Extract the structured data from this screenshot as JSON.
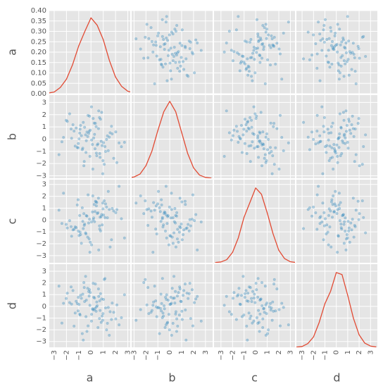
{
  "chart_data": {
    "type": "scatter_matrix",
    "variables": [
      "a",
      "b",
      "c",
      "d"
    ],
    "point_color": "#348abd",
    "line_color": "#e24a33",
    "grid": true,
    "data": [
      [
        0.12,
        -0.85,
        1.34,
        0.47,
        -1.62,
        0.05,
        2.11,
        -0.33,
        0.78,
        -1.05,
        0.29,
        -0.58,
        1.67,
        -2.24,
        0.91,
        -0.12,
        0.44,
        -1.38,
        1.02,
        0.63,
        -0.71,
        -0.19,
        1.85,
        -0.97,
        0.36,
        2.48,
        -1.21,
        0.15,
        -0.44,
        0.83,
        -2.02,
        1.19,
        -0.06,
        0.57,
        -1.74,
        0.98,
        -0.27,
        1.41,
        -0.63,
        0.22,
        -1.12,
        0.69,
        -2.61,
        1.56,
        -0.38,
        0.04,
        1.08,
        -0.89,
        0.51,
        -1.47,
        2.29,
        -0.15,
        0.74,
        -0.52,
        1.27,
        -1.93,
        0.33,
        -0.78,
        0.96,
        0.18,
        -1.29,
        1.73,
        -0.41,
        0.61,
        -2.37,
        0.87,
        -0.09,
        1.49,
        -0.67,
        0.26,
        -1.03,
        2.02,
        -0.55,
        0.42,
        -1.58,
        1.14,
        -0.24,
        0.71,
        -0.92,
        2.73
      ],
      [
        -0.44,
        1.12,
        0.27,
        -1.36,
        0.83,
        -0.07,
        -1.92,
        0.58,
        1.63,
        -0.71,
        0.39,
        -2.18,
        1.05,
        0.14,
        -0.53,
        1.88,
        -1.14,
        0.66,
        -0.29,
        2.31,
        -0.86,
        0.47,
        -1.57,
        0.02,
        1.29,
        -0.62,
        0.91,
        -2.45,
        0.35,
        -0.18,
        1.54,
        -1.01,
        0.73,
        -0.39,
        2.07,
        -1.76,
        0.21,
        -0.95,
        1.37,
        0.09,
        -0.68,
        1.76,
        -1.27,
        0.52,
        -0.13,
        2.64,
        -2.06,
        0.81,
        -0.48,
        1.18,
        -0.31,
        0.64,
        -1.49,
        0.97,
        -0.02,
        1.45,
        -0.79,
        0.28,
        -2.83,
        1.69,
        -0.57,
        0.43,
        -1.09,
        0.86,
        -0.22,
        2.19,
        -1.41,
        0.16,
        -0.74,
        1.31,
        -0.36,
        0.59,
        -1.83,
        1.02,
        0.07,
        -0.61,
        1.94,
        -1.18,
        0.49,
        -0.26
      ],
      [
        0.68,
        -1.23,
        0.19,
        1.47,
        -0.56,
        -2.09,
        0.88,
        0.33,
        -0.92,
        1.71,
        -0.14,
        0.54,
        -1.66,
        2.26,
        -0.41,
        0.07,
        1.19,
        -0.78,
        0.42,
        -2.52,
        1.03,
        -0.25,
        0.76,
        -1.31,
        1.58,
        0.11,
        -0.64,
        2.03,
        -1.08,
        0.29,
        -0.37,
        1.36,
        -1.87,
        0.61,
        -0.05,
        0.94,
        -1.44,
        2.41,
        -0.72,
        0.18,
        1.27,
        -0.49,
        0.83,
        -2.27,
        0.37,
        -0.16,
        1.62,
        -1.02,
        0.55,
        -0.83,
        2.84,
        -1.59,
        0.24,
        -0.34,
        1.09,
        -0.67,
        0.71,
        -1.96,
        1.43,
        0.03,
        -0.58,
        0.97,
        -1.17,
        1.84,
        -0.29,
        0.46,
        -2.71,
        0.89,
        -0.11,
        1.31,
        -0.93,
        0.62,
        -0.45,
        1.53,
        -1.36,
        0.21,
        2.12,
        -0.76,
        0.38,
        -1.51
      ],
      [
        -0.21,
        0.94,
        -1.45,
        0.37,
        1.66,
        -0.68,
        0.12,
        -2.14,
        1.08,
        -0.39,
        0.71,
        2.03,
        -1.12,
        0.26,
        -0.83,
        1.42,
        -0.04,
        -1.69,
        0.59,
        0.85,
        -2.33,
        1.27,
        -0.51,
        0.16,
        1.91,
        -0.97,
        0.43,
        -0.28,
        2.56,
        -1.37,
        0.67,
        -0.13,
        1.18,
        -1.81,
        0.32,
        -0.62,
        1.54,
        -0.09,
        -2.88,
        0.78,
        0.24,
        -1.04,
        1.73,
        -0.46,
        0.53,
        -1.26,
        2.29,
        -0.74,
        0.05,
        1.35,
        -1.58,
        0.88,
        -0.35,
        0.41,
        -2.01,
        1.12,
        -0.17,
        0.69,
        -1.19,
        1.97,
        -0.57,
        0.28,
        -0.88,
        1.49,
        -1.43,
        0.63,
        0.09,
        -2.47,
        1.04,
        -0.31,
        0.77,
        -1.07,
        1.61,
        -0.42,
        0.19,
        2.38,
        -1.67,
        0.47,
        -0.66,
        0.99
      ]
    ],
    "lims": [
      [
        -3.4,
        3.2
      ],
      [
        -3.2,
        3.6
      ],
      [
        -3.6,
        3.4
      ],
      [
        -3.5,
        3.6
      ]
    ],
    "ticks": [
      {
        "value": -3,
        "label": "−3"
      },
      {
        "value": -2,
        "label": "−2"
      },
      {
        "value": -1,
        "label": "−1"
      },
      0,
      1,
      2,
      3
    ],
    "density_ylim": [
      0,
      0.4
    ],
    "density_yticks": [
      {
        "value": 0,
        "label": "0.00"
      },
      {
        "value": 0.05,
        "label": "0.05"
      },
      {
        "value": 0.1,
        "label": "0.10"
      },
      {
        "value": 0.15,
        "label": "0.15"
      },
      {
        "value": 0.2,
        "label": "0.20"
      },
      {
        "value": 0.25,
        "label": "0.25"
      },
      {
        "value": 0.3,
        "label": "0.30"
      },
      {
        "value": 0.35,
        "label": "0.35"
      },
      {
        "value": 0.4,
        "label": "0.40"
      }
    ],
    "kde_x": [
      -3.5,
      -3,
      -2.5,
      -2,
      -1.5,
      -1,
      -0.5,
      0,
      0.5,
      1,
      1.5,
      2,
      2.5,
      3,
      3.5
    ],
    "kde": [
      [
        0.003,
        0.008,
        0.03,
        0.07,
        0.14,
        0.23,
        0.3,
        0.365,
        0.33,
        0.26,
        0.16,
        0.08,
        0.035,
        0.012,
        0.004
      ],
      [
        0.002,
        0.006,
        0.02,
        0.06,
        0.13,
        0.23,
        0.32,
        0.37,
        0.32,
        0.22,
        0.12,
        0.05,
        0.015,
        0.004,
        0.001
      ],
      [
        0.001,
        0.004,
        0.015,
        0.05,
        0.12,
        0.22,
        0.29,
        0.36,
        0.33,
        0.24,
        0.14,
        0.06,
        0.02,
        0.005,
        0.001
      ],
      [
        0.001,
        0.004,
        0.018,
        0.05,
        0.12,
        0.21,
        0.27,
        0.36,
        0.35,
        0.25,
        0.14,
        0.06,
        0.02,
        0.006,
        0.002
      ]
    ]
  }
}
